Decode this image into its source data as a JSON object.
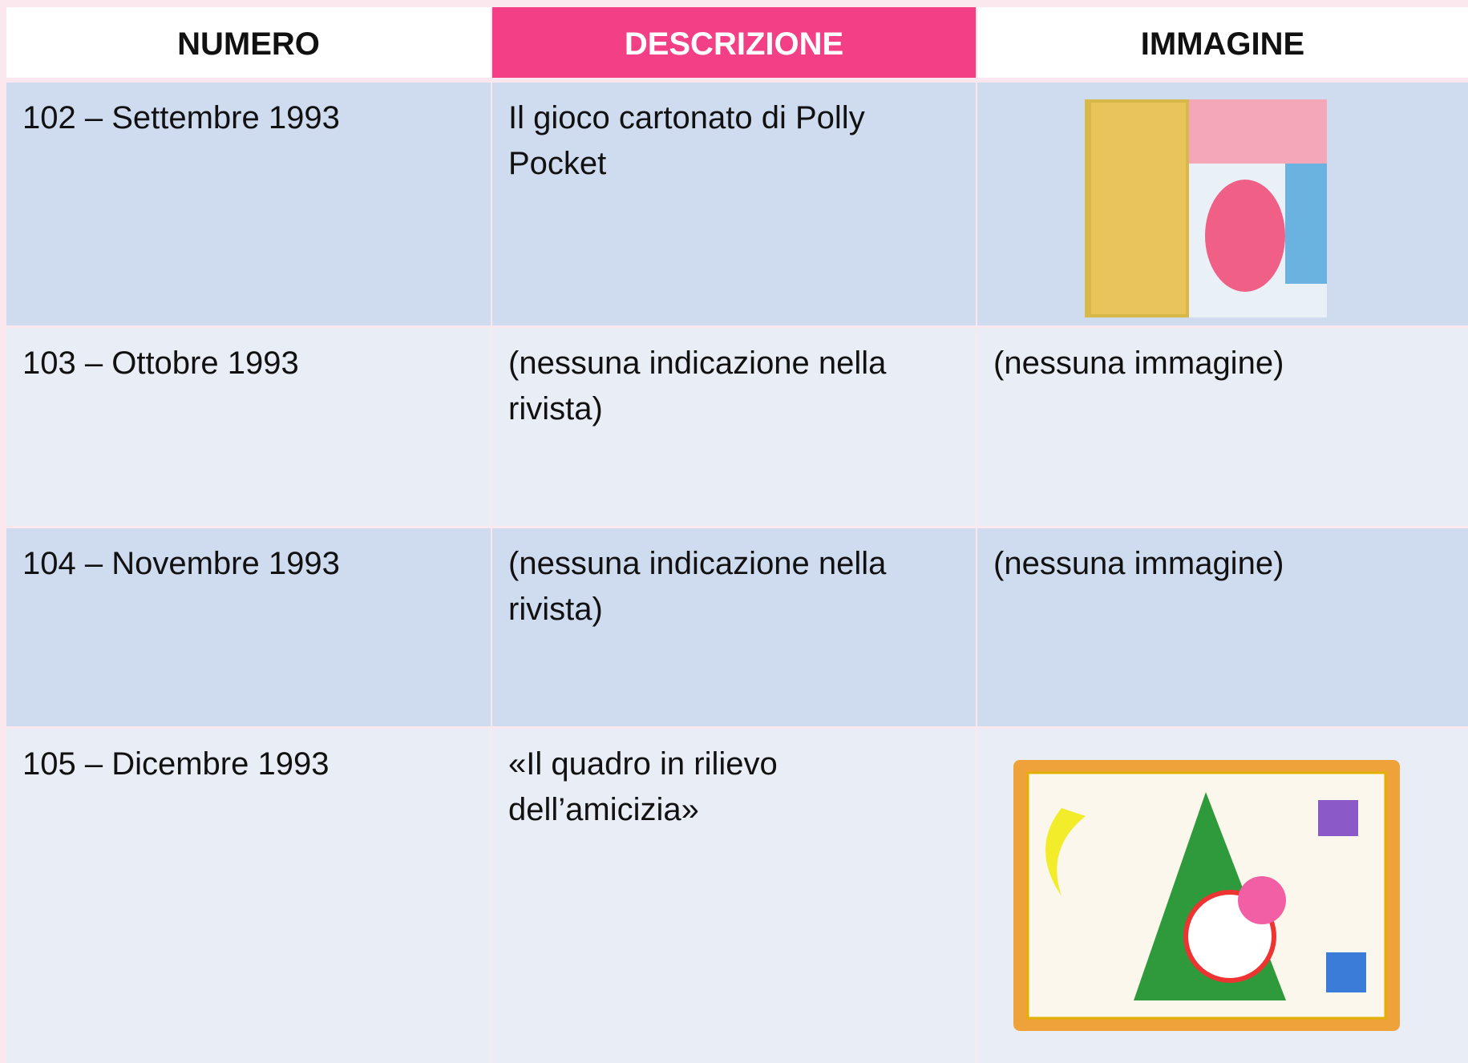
{
  "table": {
    "header": [
      "NUMERO",
      "DESCRIZIONE",
      "IMMAGINE"
    ],
    "rows": [
      {
        "numero": "102 – Settembre 1993",
        "descrizione": "Il gioco cartonato di Polly Pocket"
      },
      {
        "numero": "103 – Ottobre 1993",
        "descrizione": "(nessuna indicazione nella rivista)",
        "immagine": "(nessuna immagine)"
      },
      {
        "numero": "104 – Novembre 1993",
        "descrizione": "(nessuna indicazione nella rivista)",
        "immagine": "(nessuna immagine)"
      },
      {
        "numero": "105 – Dicembre 1993",
        "descrizione": "«Il quadro in rilievo dell’amicizia»"
      }
    ]
  }
}
